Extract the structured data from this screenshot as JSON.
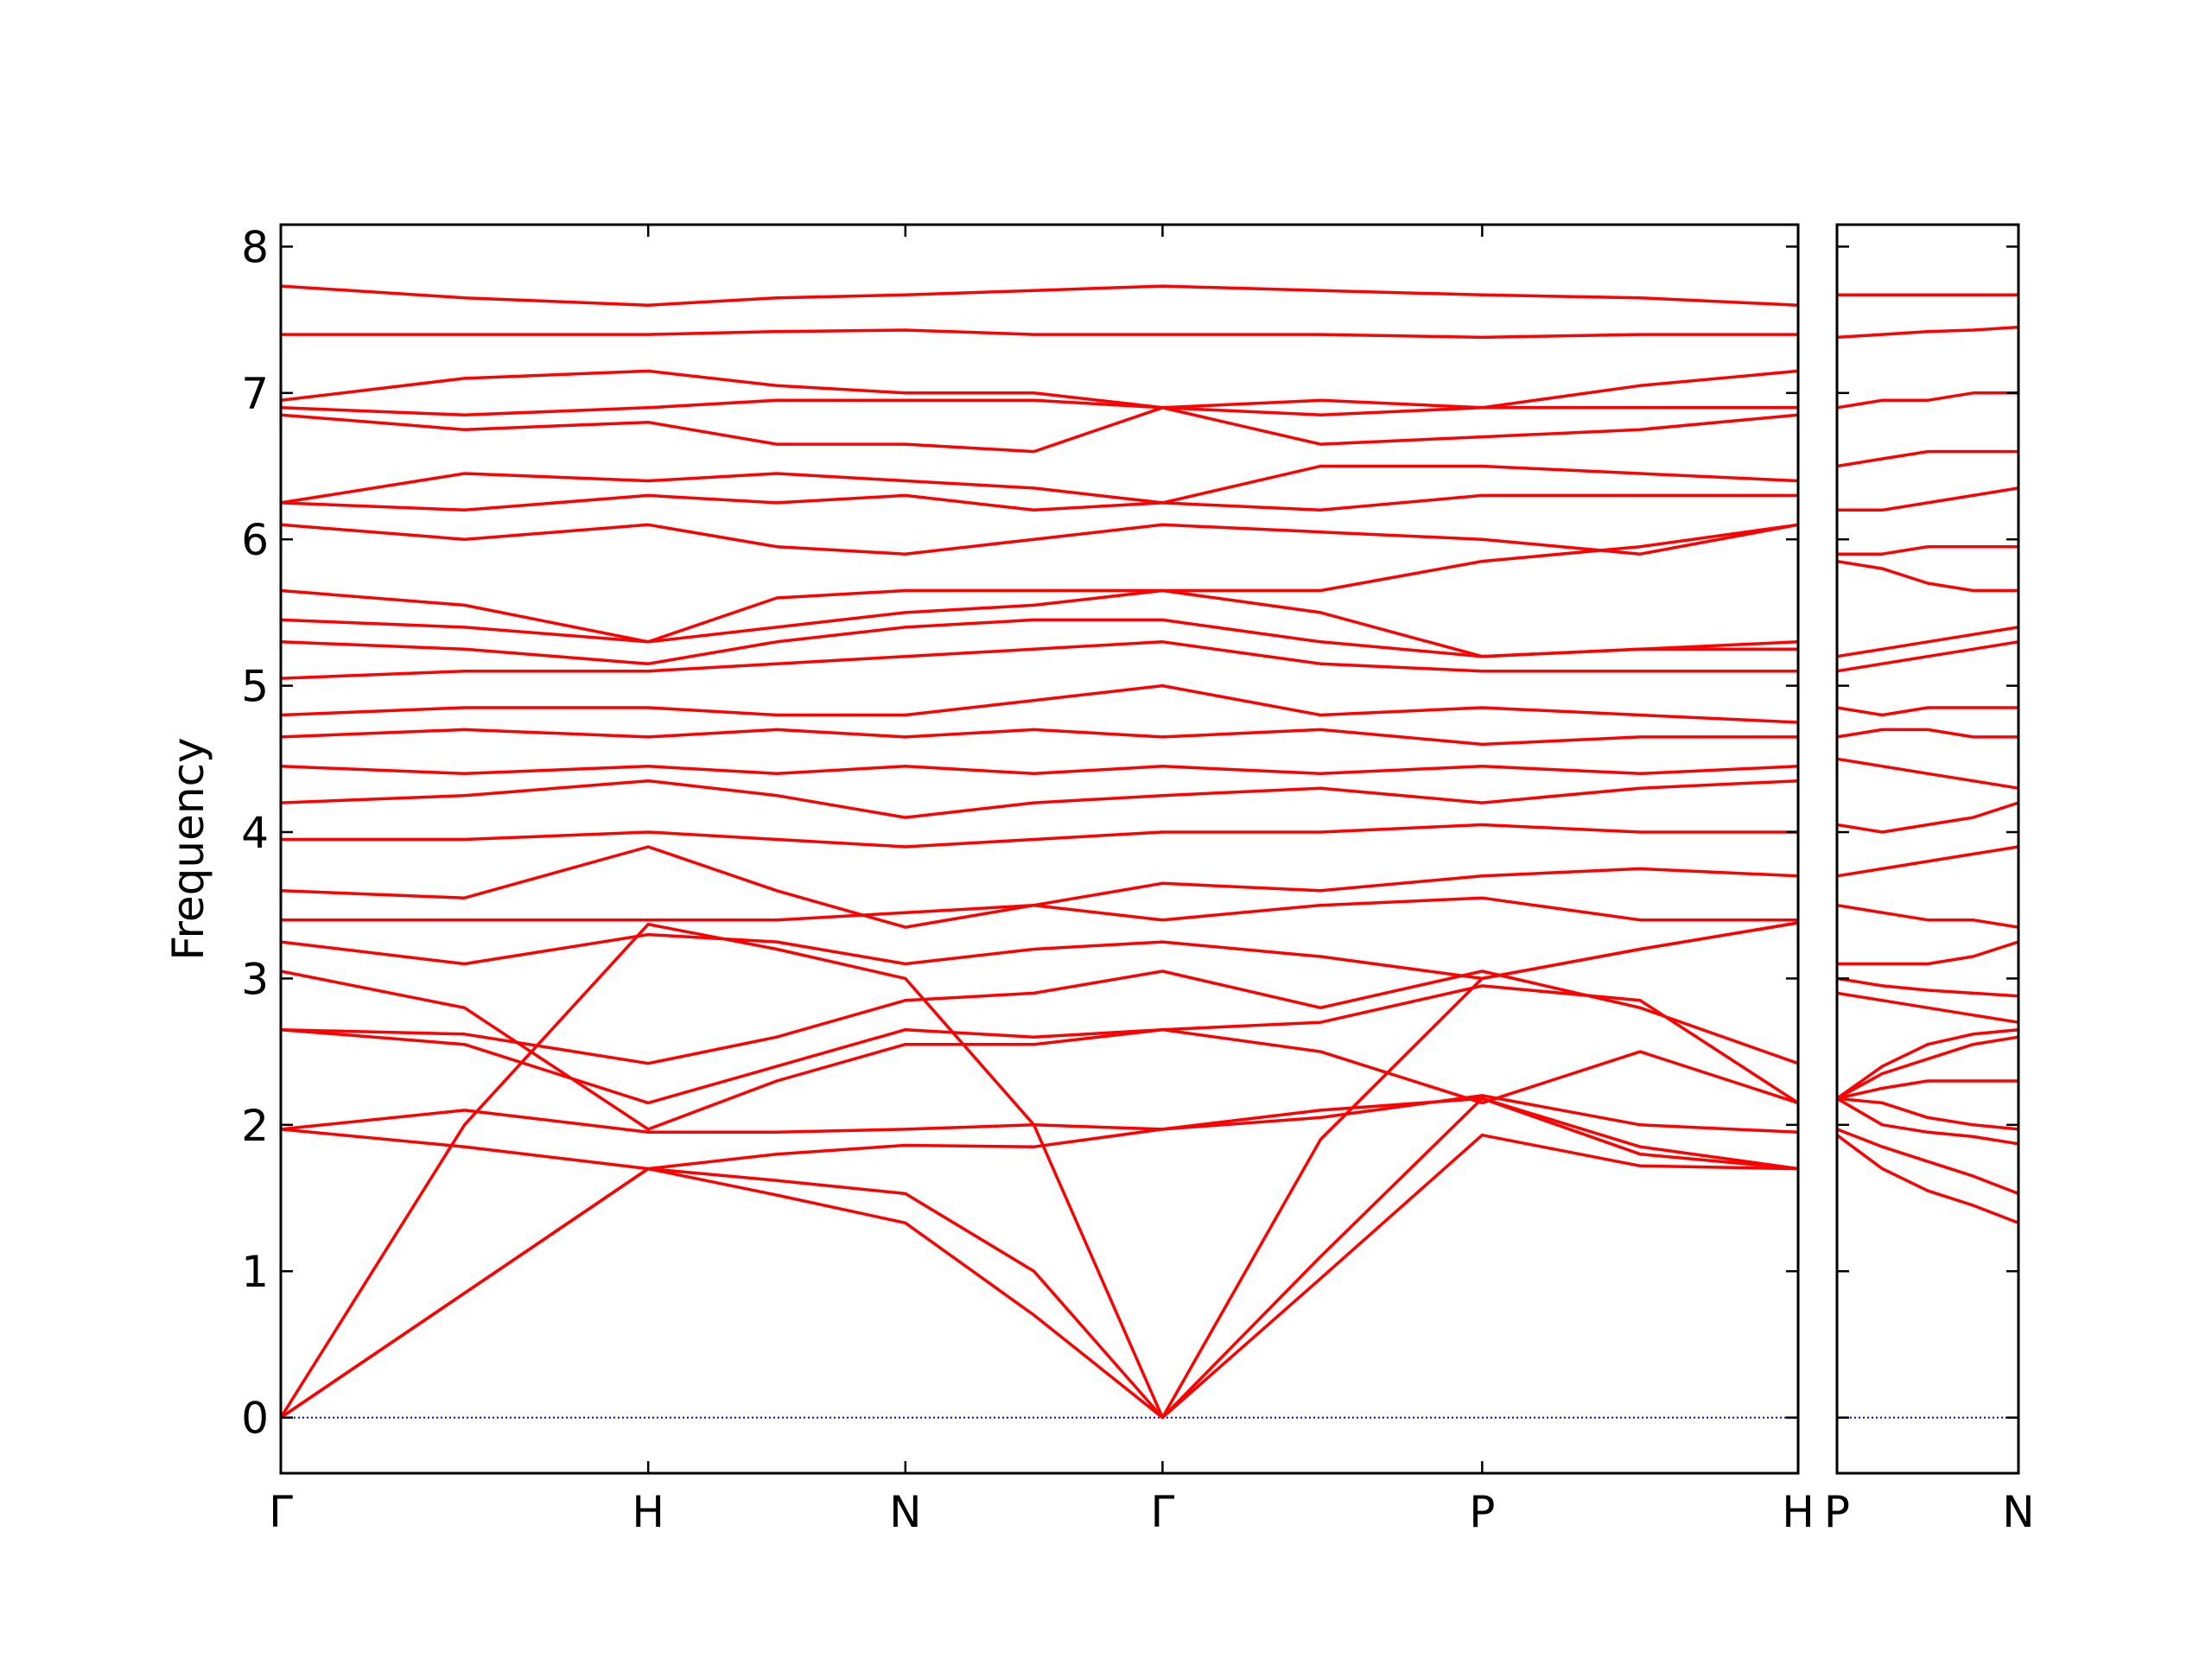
{
  "chart_data": [
    {
      "type": "line",
      "y_label": "Frequency",
      "color": "#ff0000",
      "hline": 0,
      "hline_color": "#0000cc",
      "x": [
        0,
        0.5,
        1.0,
        1.35,
        1.7,
        2.05,
        2.4,
        2.83,
        3.27,
        3.7,
        4.13
      ],
      "xlim": [
        0,
        4.13
      ],
      "ylim": [
        -0.38,
        8.15
      ],
      "xticks": [
        {
          "value": 0,
          "label": "Γ"
        },
        {
          "value": 1.0,
          "label": "H"
        },
        {
          "value": 1.7,
          "label": "N"
        },
        {
          "value": 2.4,
          "label": "Γ"
        },
        {
          "value": 3.27,
          "label": "P"
        },
        {
          "value": 4.13,
          "label": "H"
        }
      ],
      "yticks": [
        0,
        1,
        2,
        3,
        4,
        5,
        6,
        7,
        8
      ],
      "series": [
        {
          "values": [
            0,
            0.85,
            1.7,
            1.52,
            1.33,
            0.7,
            0,
            0.95,
            1.93,
            1.72,
            1.7
          ]
        },
        {
          "values": [
            0,
            0.85,
            1.7,
            1.62,
            1.53,
            1.0,
            0,
            1.1,
            2.18,
            1.85,
            1.7
          ]
        },
        {
          "values": [
            0,
            2.0,
            3.37,
            3.2,
            3.0,
            2.0,
            0,
            1.9,
            3.0,
            3.2,
            3.38
          ]
        },
        {
          "values": [
            1.97,
            1.85,
            1.7,
            1.8,
            1.86,
            1.85,
            1.97,
            2.05,
            2.2,
            2.0,
            1.95
          ]
        },
        {
          "values": [
            1.97,
            2.1,
            1.95,
            1.95,
            1.97,
            2.0,
            1.97,
            2.1,
            2.18,
            1.8,
            1.7
          ]
        },
        {
          "values": [
            2.65,
            2.55,
            2.15,
            2.4,
            2.65,
            2.6,
            2.65,
            2.5,
            2.15,
            2.5,
            2.15
          ]
        },
        {
          "values": [
            2.65,
            2.62,
            2.42,
            2.6,
            2.85,
            2.9,
            3.05,
            2.8,
            3.05,
            2.8,
            2.42
          ]
        },
        {
          "values": [
            3.05,
            2.8,
            1.97,
            2.3,
            2.55,
            2.55,
            2.65,
            2.7,
            2.95,
            2.85,
            2.15
          ]
        },
        {
          "values": [
            3.25,
            3.1,
            3.3,
            3.25,
            3.1,
            3.2,
            3.25,
            3.15,
            3.0,
            3.2,
            3.38
          ]
        },
        {
          "values": [
            3.4,
            3.4,
            3.4,
            3.4,
            3.45,
            3.5,
            3.4,
            3.5,
            3.55,
            3.4,
            3.4
          ]
        },
        {
          "values": [
            3.6,
            3.55,
            3.9,
            3.6,
            3.35,
            3.5,
            3.65,
            3.6,
            3.7,
            3.75,
            3.7
          ]
        },
        {
          "values": [
            3.95,
            3.95,
            4.0,
            3.95,
            3.9,
            3.95,
            4.0,
            4.0,
            4.05,
            4.0,
            4.0
          ]
        },
        {
          "values": [
            4.2,
            4.25,
            4.35,
            4.25,
            4.1,
            4.2,
            4.25,
            4.3,
            4.2,
            4.3,
            4.35
          ]
        },
        {
          "values": [
            4.45,
            4.4,
            4.45,
            4.4,
            4.45,
            4.4,
            4.45,
            4.4,
            4.45,
            4.4,
            4.45
          ]
        },
        {
          "values": [
            4.65,
            4.7,
            4.65,
            4.7,
            4.65,
            4.7,
            4.65,
            4.7,
            4.6,
            4.65,
            4.65
          ]
        },
        {
          "values": [
            4.8,
            4.85,
            4.85,
            4.8,
            4.8,
            4.9,
            5.0,
            4.8,
            4.85,
            4.8,
            4.75
          ]
        },
        {
          "values": [
            5.05,
            5.1,
            5.1,
            5.15,
            5.2,
            5.25,
            5.3,
            5.15,
            5.1,
            5.1,
            5.1
          ]
        },
        {
          "values": [
            5.3,
            5.25,
            5.15,
            5.3,
            5.4,
            5.45,
            5.45,
            5.3,
            5.2,
            5.25,
            5.3
          ]
        },
        {
          "values": [
            5.45,
            5.4,
            5.3,
            5.4,
            5.5,
            5.55,
            5.65,
            5.5,
            5.2,
            5.25,
            5.25
          ]
        },
        {
          "values": [
            5.65,
            5.55,
            5.3,
            5.6,
            5.65,
            5.65,
            5.65,
            5.65,
            5.85,
            5.95,
            6.1
          ]
        },
        {
          "values": [
            6.1,
            6.0,
            6.1,
            5.95,
            5.9,
            6.0,
            6.1,
            6.05,
            6.0,
            5.9,
            6.1
          ]
        },
        {
          "values": [
            6.25,
            6.2,
            6.3,
            6.25,
            6.3,
            6.2,
            6.25,
            6.2,
            6.3,
            6.3,
            6.3
          ]
        },
        {
          "values": [
            6.25,
            6.45,
            6.4,
            6.45,
            6.4,
            6.35,
            6.25,
            6.5,
            6.5,
            6.45,
            6.4
          ]
        },
        {
          "values": [
            6.85,
            6.75,
            6.8,
            6.65,
            6.65,
            6.6,
            6.9,
            6.65,
            6.7,
            6.75,
            6.85
          ]
        },
        {
          "values": [
            6.9,
            6.85,
            6.9,
            6.95,
            6.95,
            6.95,
            6.9,
            6.95,
            6.9,
            6.9,
            6.9
          ]
        },
        {
          "values": [
            6.95,
            7.1,
            7.15,
            7.05,
            7.0,
            7.0,
            6.9,
            6.85,
            6.9,
            7.05,
            7.15
          ]
        },
        {
          "values": [
            7.4,
            7.4,
            7.4,
            7.42,
            7.43,
            7.4,
            7.4,
            7.4,
            7.38,
            7.4,
            7.4
          ]
        },
        {
          "values": [
            7.73,
            7.65,
            7.6,
            7.65,
            7.67,
            7.7,
            7.73,
            7.7,
            7.67,
            7.65,
            7.6
          ]
        }
      ]
    },
    {
      "type": "line",
      "color": "#ff0000",
      "hline": 0,
      "hline_color": "#0000cc",
      "x": [
        0,
        0.125,
        0.25,
        0.375,
        0.5
      ],
      "xlim": [
        0,
        0.5
      ],
      "ylim": [
        -0.38,
        8.15
      ],
      "xticks": [
        {
          "value": 0,
          "label": "P"
        },
        {
          "value": 0.5,
          "label": "N"
        }
      ],
      "series": [
        {
          "values": [
            1.93,
            1.7,
            1.55,
            1.45,
            1.33
          ]
        },
        {
          "values": [
            1.97,
            1.85,
            1.75,
            1.65,
            1.53
          ]
        },
        {
          "values": [
            2.18,
            2.0,
            1.95,
            1.92,
            1.87
          ]
        },
        {
          "values": [
            2.18,
            2.15,
            2.05,
            2.0,
            1.97
          ]
        },
        {
          "values": [
            2.18,
            2.25,
            2.3,
            2.3,
            2.3
          ]
        },
        {
          "values": [
            2.18,
            2.35,
            2.45,
            2.55,
            2.6
          ]
        },
        {
          "values": [
            2.18,
            2.4,
            2.55,
            2.62,
            2.65
          ]
        },
        {
          "values": [
            2.9,
            2.85,
            2.8,
            2.75,
            2.7
          ]
        },
        {
          "values": [
            3.0,
            2.95,
            2.92,
            2.9,
            2.88
          ]
        },
        {
          "values": [
            3.1,
            3.1,
            3.1,
            3.15,
            3.25
          ]
        },
        {
          "values": [
            3.5,
            3.45,
            3.4,
            3.4,
            3.35
          ]
        },
        {
          "values": [
            3.7,
            3.75,
            3.8,
            3.85,
            3.9
          ]
        },
        {
          "values": [
            4.05,
            4.0,
            4.05,
            4.1,
            4.2
          ]
        },
        {
          "values": [
            4.5,
            4.45,
            4.4,
            4.35,
            4.3
          ]
        },
        {
          "values": [
            4.65,
            4.7,
            4.7,
            4.65,
            4.65
          ]
        },
        {
          "values": [
            4.85,
            4.8,
            4.85,
            4.85,
            4.85
          ]
        },
        {
          "values": [
            5.1,
            5.15,
            5.2,
            5.25,
            5.3
          ]
        },
        {
          "values": [
            5.2,
            5.25,
            5.3,
            5.35,
            5.4
          ]
        },
        {
          "values": [
            5.85,
            5.8,
            5.7,
            5.65,
            5.65
          ]
        },
        {
          "values": [
            5.9,
            5.9,
            5.95,
            5.95,
            5.95
          ]
        },
        {
          "values": [
            6.2,
            6.2,
            6.25,
            6.3,
            6.35
          ]
        },
        {
          "values": [
            6.5,
            6.55,
            6.6,
            6.6,
            6.6
          ]
        },
        {
          "values": [
            6.9,
            6.95,
            6.95,
            7.0,
            7.0
          ]
        },
        {
          "values": [
            7.38,
            7.4,
            7.42,
            7.43,
            7.45
          ]
        },
        {
          "values": [
            7.67,
            7.67,
            7.67,
            7.67,
            7.67
          ]
        }
      ]
    }
  ]
}
